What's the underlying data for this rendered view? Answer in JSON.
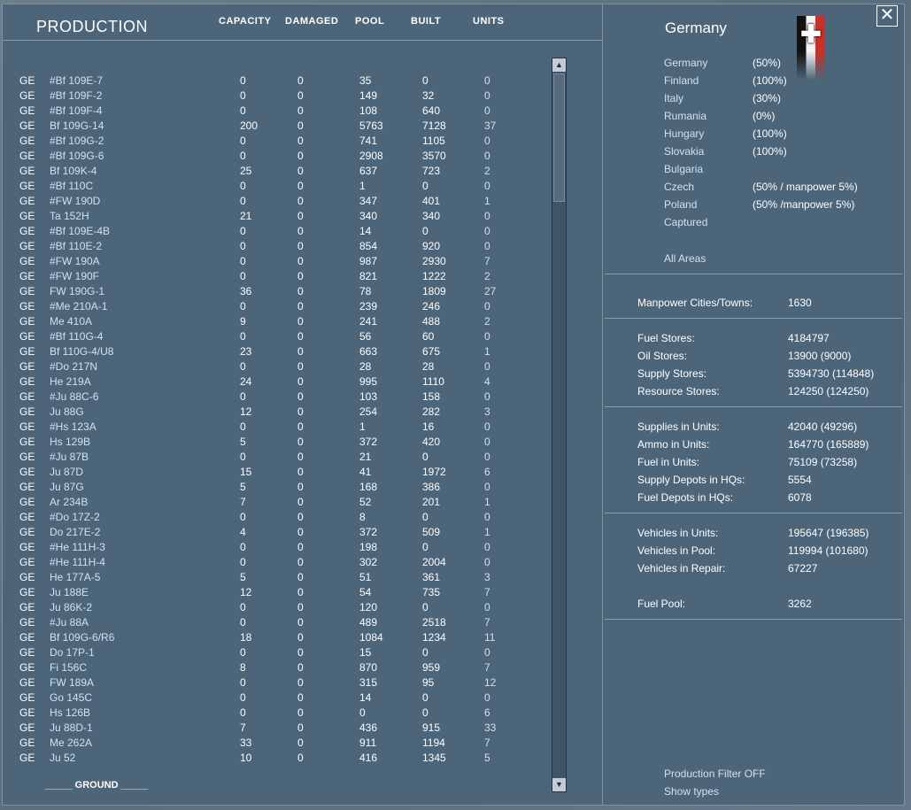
{
  "header": {
    "title": "PRODUCTION",
    "columns": [
      "CAPACITY",
      "DAMAGED",
      "POOL",
      "BUILT",
      "UNITS"
    ]
  },
  "rows": [
    {
      "nat": "GE",
      "name": "#Bf 109E-7",
      "cap": "0",
      "dmg": "0",
      "pool": "35",
      "built": "0",
      "units": "0"
    },
    {
      "nat": "GE",
      "name": "#Bf 109F-2",
      "cap": "0",
      "dmg": "0",
      "pool": "149",
      "built": "32",
      "units": "0"
    },
    {
      "nat": "GE",
      "name": "#Bf 109F-4",
      "cap": "0",
      "dmg": "0",
      "pool": "108",
      "built": "640",
      "units": "0"
    },
    {
      "nat": "GE",
      "name": "Bf 109G-14",
      "cap": "200",
      "dmg": "0",
      "pool": "5763",
      "built": "7128",
      "units": "37"
    },
    {
      "nat": "GE",
      "name": "#Bf 109G-2",
      "cap": "0",
      "dmg": "0",
      "pool": "741",
      "built": "1105",
      "units": "0"
    },
    {
      "nat": "GE",
      "name": "#Bf 109G-6",
      "cap": "0",
      "dmg": "0",
      "pool": "2908",
      "built": "3570",
      "units": "0"
    },
    {
      "nat": "GE",
      "name": "Bf 109K-4",
      "cap": "25",
      "dmg": "0",
      "pool": "637",
      "built": "723",
      "units": "2"
    },
    {
      "nat": "GE",
      "name": "#Bf 110C",
      "cap": "0",
      "dmg": "0",
      "pool": "1",
      "built": "0",
      "units": "0"
    },
    {
      "nat": "GE",
      "name": "#FW 190D",
      "cap": "0",
      "dmg": "0",
      "pool": "347",
      "built": "401",
      "units": "1"
    },
    {
      "nat": "GE",
      "name": "Ta 152H",
      "cap": "21",
      "dmg": "0",
      "pool": "340",
      "built": "340",
      "units": "0"
    },
    {
      "nat": "GE",
      "name": "#Bf 109E-4B",
      "cap": "0",
      "dmg": "0",
      "pool": "14",
      "built": "0",
      "units": "0"
    },
    {
      "nat": "GE",
      "name": "#Bf 110E-2",
      "cap": "0",
      "dmg": "0",
      "pool": "854",
      "built": "920",
      "units": "0"
    },
    {
      "nat": "GE",
      "name": "#FW 190A",
      "cap": "0",
      "dmg": "0",
      "pool": "987",
      "built": "2930",
      "units": "7"
    },
    {
      "nat": "GE",
      "name": "#FW 190F",
      "cap": "0",
      "dmg": "0",
      "pool": "821",
      "built": "1222",
      "units": "2"
    },
    {
      "nat": "GE",
      "name": "FW 190G-1",
      "cap": "36",
      "dmg": "0",
      "pool": "78",
      "built": "1809",
      "units": "27"
    },
    {
      "nat": "GE",
      "name": "#Me 210A-1",
      "cap": "0",
      "dmg": "0",
      "pool": "239",
      "built": "246",
      "units": "0"
    },
    {
      "nat": "GE",
      "name": "Me 410A",
      "cap": "9",
      "dmg": "0",
      "pool": "241",
      "built": "488",
      "units": "2"
    },
    {
      "nat": "GE",
      "name": "#Bf 110G-4",
      "cap": "0",
      "dmg": "0",
      "pool": "56",
      "built": "60",
      "units": "0"
    },
    {
      "nat": "GE",
      "name": "Bf 110G-4/U8",
      "cap": "23",
      "dmg": "0",
      "pool": "663",
      "built": "675",
      "units": "1"
    },
    {
      "nat": "GE",
      "name": "#Do 217N",
      "cap": "0",
      "dmg": "0",
      "pool": "28",
      "built": "28",
      "units": "0"
    },
    {
      "nat": "GE",
      "name": "He 219A",
      "cap": "24",
      "dmg": "0",
      "pool": "995",
      "built": "1110",
      "units": "4"
    },
    {
      "nat": "GE",
      "name": "#Ju 88C-6",
      "cap": "0",
      "dmg": "0",
      "pool": "103",
      "built": "158",
      "units": "0"
    },
    {
      "nat": "GE",
      "name": "Ju 88G",
      "cap": "12",
      "dmg": "0",
      "pool": "254",
      "built": "282",
      "units": "3"
    },
    {
      "nat": "GE",
      "name": "#Hs 123A",
      "cap": "0",
      "dmg": "0",
      "pool": "1",
      "built": "16",
      "units": "0"
    },
    {
      "nat": "GE",
      "name": "Hs 129B",
      "cap": "5",
      "dmg": "0",
      "pool": "372",
      "built": "420",
      "units": "0"
    },
    {
      "nat": "GE",
      "name": "#Ju 87B",
      "cap": "0",
      "dmg": "0",
      "pool": "21",
      "built": "0",
      "units": "0"
    },
    {
      "nat": "GE",
      "name": "Ju 87D",
      "cap": "15",
      "dmg": "0",
      "pool": "41",
      "built": "1972",
      "units": "6"
    },
    {
      "nat": "GE",
      "name": "Ju 87G",
      "cap": "5",
      "dmg": "0",
      "pool": "168",
      "built": "386",
      "units": "0"
    },
    {
      "nat": "GE",
      "name": "Ar 234B",
      "cap": "7",
      "dmg": "0",
      "pool": "52",
      "built": "201",
      "units": "1"
    },
    {
      "nat": "GE",
      "name": "#Do 17Z-2",
      "cap": "0",
      "dmg": "0",
      "pool": "8",
      "built": "0",
      "units": "0"
    },
    {
      "nat": "GE",
      "name": "Do 217E-2",
      "cap": "4",
      "dmg": "0",
      "pool": "372",
      "built": "509",
      "units": "1"
    },
    {
      "nat": "GE",
      "name": "#He 111H-3",
      "cap": "0",
      "dmg": "0",
      "pool": "198",
      "built": "0",
      "units": "0"
    },
    {
      "nat": "GE",
      "name": "#He 111H-4",
      "cap": "0",
      "dmg": "0",
      "pool": "302",
      "built": "2004",
      "units": "0"
    },
    {
      "nat": "GE",
      "name": "He 177A-5",
      "cap": "5",
      "dmg": "0",
      "pool": "51",
      "built": "361",
      "units": "3"
    },
    {
      "nat": "GE",
      "name": "Ju 188E",
      "cap": "12",
      "dmg": "0",
      "pool": "54",
      "built": "735",
      "units": "7"
    },
    {
      "nat": "GE",
      "name": "Ju 86K-2",
      "cap": "0",
      "dmg": "0",
      "pool": "120",
      "built": "0",
      "units": "0"
    },
    {
      "nat": "GE",
      "name": "#Ju 88A",
      "cap": "0",
      "dmg": "0",
      "pool": "489",
      "built": "2518",
      "units": "7"
    },
    {
      "nat": "GE",
      "name": "Bf 109G-6/R6",
      "cap": "18",
      "dmg": "0",
      "pool": "1084",
      "built": "1234",
      "units": "11"
    },
    {
      "nat": "GE",
      "name": "Do 17P-1",
      "cap": "0",
      "dmg": "0",
      "pool": "15",
      "built": "0",
      "units": "0"
    },
    {
      "nat": "GE",
      "name": "Fi 156C",
      "cap": "8",
      "dmg": "0",
      "pool": "870",
      "built": "959",
      "units": "7"
    },
    {
      "nat": "GE",
      "name": "FW 189A",
      "cap": "0",
      "dmg": "0",
      "pool": "315",
      "built": "95",
      "units": "12"
    },
    {
      "nat": "GE",
      "name": "Go 145C",
      "cap": "0",
      "dmg": "0",
      "pool": "14",
      "built": "0",
      "units": "0"
    },
    {
      "nat": "GE",
      "name": "Hs 126B",
      "cap": "0",
      "dmg": "0",
      "pool": "0",
      "built": "0",
      "units": "6"
    },
    {
      "nat": "GE",
      "name": "Ju 88D-1",
      "cap": "7",
      "dmg": "0",
      "pool": "436",
      "built": "915",
      "units": "33"
    },
    {
      "nat": "GE",
      "name": "Me 262A",
      "cap": "33",
      "dmg": "0",
      "pool": "911",
      "built": "1194",
      "units": "7"
    },
    {
      "nat": "GE",
      "name": "Ju 52",
      "cap": "10",
      "dmg": "0",
      "pool": "416",
      "built": "1345",
      "units": "5"
    }
  ],
  "ground_label": "_____ GROUND _____",
  "scrollbar": {
    "up_glyph": "▲",
    "down_glyph": "▼"
  },
  "side": {
    "country": "Germany",
    "close_glyph": "✕",
    "flag_glyph": "✚",
    "flag_colors": [
      "#111111",
      "#f4f4f4",
      "#c8312b"
    ],
    "areas": [
      {
        "name": "Germany",
        "value": "(50%)"
      },
      {
        "name": "Finland",
        "value": "(100%)"
      },
      {
        "name": "Italy",
        "value": "(30%)"
      },
      {
        "name": "Rumania",
        "value": "(0%)"
      },
      {
        "name": "Hungary",
        "value": "(100%)"
      },
      {
        "name": "Slovakia",
        "value": "(100%)"
      },
      {
        "name": "Bulgaria",
        "value": ""
      },
      {
        "name": "Czech",
        "value": "(50% / manpower 5%)"
      },
      {
        "name": "Poland",
        "value": "(50% /manpower 5%)"
      },
      {
        "name": "Captured",
        "value": ""
      }
    ],
    "all_areas": "All Areas",
    "manpower": [
      {
        "label": "Manpower Cities/Towns:",
        "value": "1630"
      }
    ],
    "stores": [
      {
        "label": "Fuel Stores:",
        "value": "4184797"
      },
      {
        "label": "Oil Stores:",
        "value": "13900 (9000)"
      },
      {
        "label": "Supply Stores:",
        "value": "5394730 (114848)"
      },
      {
        "label": "Resource Stores:",
        "value": "124250 (124250)"
      }
    ],
    "units_supply": [
      {
        "label": "Supplies in Units:",
        "value": "42040 (49296)"
      },
      {
        "label": "Ammo in Units:",
        "value": "164770 (165889)"
      },
      {
        "label": "Fuel in Units:",
        "value": "75109 (73258)"
      },
      {
        "label": "Supply Depots in HQs:",
        "value": "5554"
      },
      {
        "label": "Fuel Depots in HQs:",
        "value": "6078"
      }
    ],
    "vehicles": [
      {
        "label": "Vehicles in Units:",
        "value": "195647 (196385)"
      },
      {
        "label": "Vehicles in Pool:",
        "value": "119994 (101680)"
      },
      {
        "label": "Vehicles in Repair:",
        "value": "67227"
      }
    ],
    "fuel_pool": {
      "label": "Fuel Pool:",
      "value": "3262"
    },
    "production_filter": "Production Filter OFF",
    "show_types": "Show types"
  }
}
